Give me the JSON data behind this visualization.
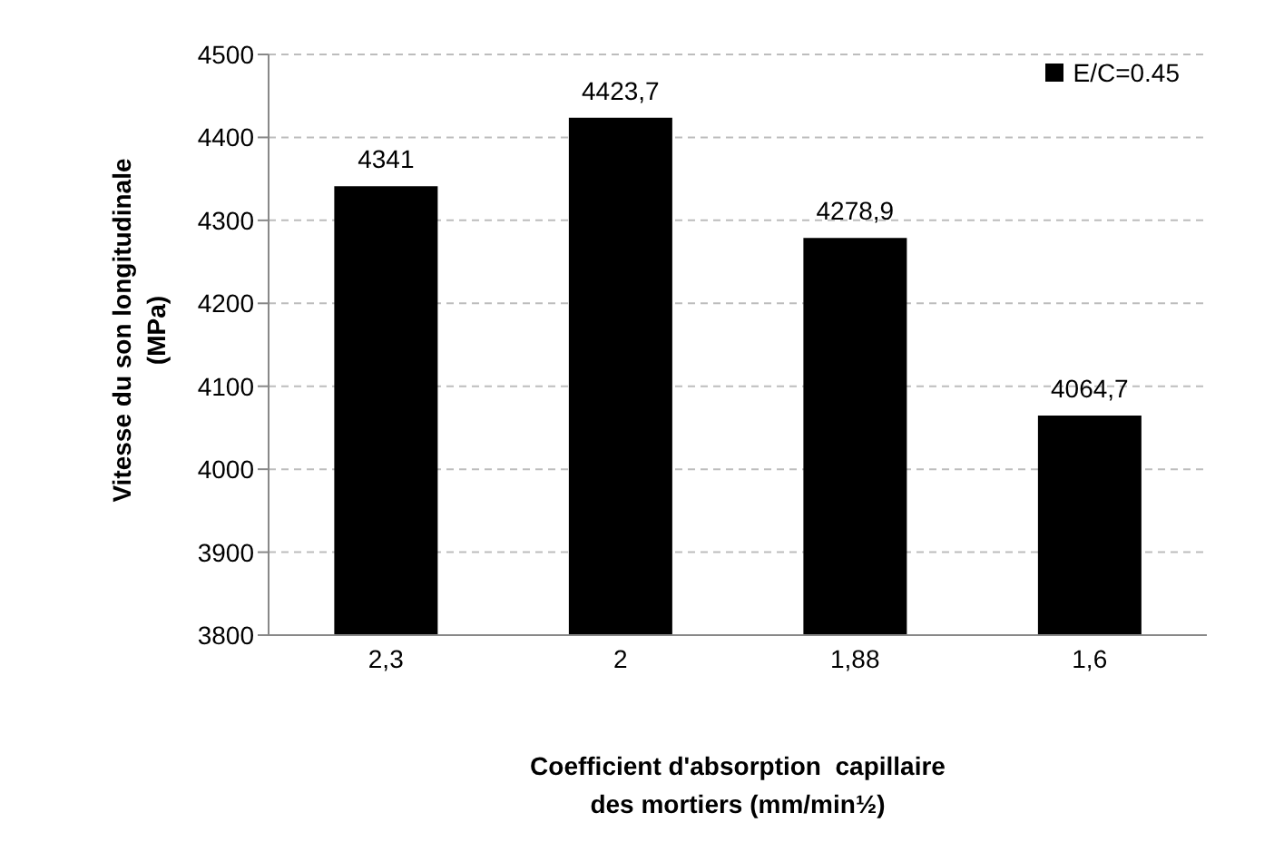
{
  "chart_data": {
    "type": "bar",
    "xlabel": "Coefficient d'absorption  capillaire\ndes mortiers (mm/min½)",
    "ylabel": "Vitesse du son longitudinale\n(MPa)",
    "categories": [
      "2,3",
      "2",
      "1,88",
      "1,6"
    ],
    "series": [
      {
        "name": "E/C=0.45",
        "color": "#000000",
        "values": [
          4341,
          4423.7,
          4278.9,
          4064.7
        ],
        "value_labels": [
          "4341",
          "4423,7",
          "4278,9",
          "4064,7"
        ]
      }
    ],
    "ylim": [
      3800,
      4500
    ],
    "yticks": [
      3800,
      3900,
      4000,
      4100,
      4200,
      4300,
      4400,
      4500
    ],
    "grid": "y",
    "legend": "top right"
  }
}
